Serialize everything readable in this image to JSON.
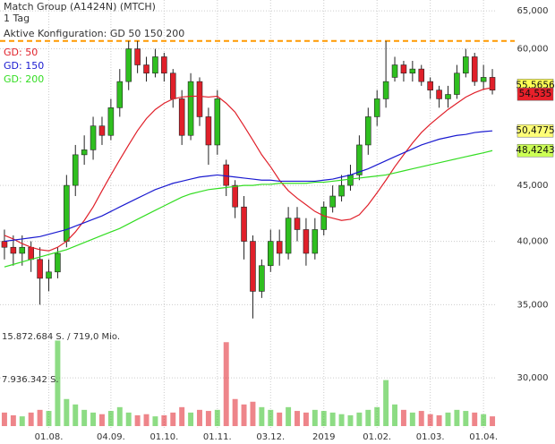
{
  "chart_data": {
    "type": "candlestick",
    "title": "Match Group (A1424N) (MTCH)",
    "subtitle": "1 Tag",
    "annotation": "Aktive Konfiguration: GD 50 150 200",
    "reference_line": {
      "value": 61,
      "color": "#ff9900"
    },
    "log_scale": true,
    "grid": true,
    "ylim": [
      27,
      66.5
    ],
    "yticks": [
      {
        "value": 65,
        "label": "65,000"
      },
      {
        "value": 60,
        "label": "60,000"
      },
      {
        "value": 45,
        "label": "45,000"
      },
      {
        "value": 40,
        "label": "40,000"
      },
      {
        "value": 35,
        "label": "35,000"
      },
      {
        "value": 30,
        "label": "30,000"
      }
    ],
    "categories": [
      null,
      null,
      null,
      null,
      null,
      "01.08.",
      null,
      null,
      null,
      null,
      null,
      null,
      "04.09.",
      null,
      null,
      null,
      null,
      null,
      "01.10.",
      null,
      null,
      null,
      null,
      null,
      "01.11.",
      null,
      null,
      null,
      null,
      null,
      "03.12.",
      null,
      null,
      null,
      null,
      null,
      "2019",
      null,
      null,
      null,
      null,
      null,
      "01.02.",
      null,
      null,
      null,
      null,
      null,
      "01.03.",
      null,
      null,
      null,
      null,
      null,
      "01.04.",
      null
    ],
    "up_color": "#2fbf1f",
    "down_color": "#e0202a",
    "open": [
      40,
      39.5,
      39,
      39.5,
      38.5,
      37,
      37.5,
      40,
      45,
      48,
      48.5,
      51,
      50,
      53,
      56,
      60,
      58,
      57,
      59,
      57,
      54,
      50,
      56,
      52,
      49,
      47,
      45,
      43,
      40,
      36,
      38,
      40,
      39,
      42,
      41,
      39,
      41,
      43,
      44,
      45,
      46,
      49,
      52,
      54,
      56.5,
      58,
      57,
      57.5,
      56,
      55,
      54,
      54.5,
      57,
      59,
      56,
      56.5
    ],
    "high": [
      41,
      40.5,
      40.5,
      40,
      39.5,
      38.5,
      39.5,
      46,
      49,
      50,
      52,
      52,
      54,
      57.5,
      61,
      61,
      59,
      60,
      59.5,
      57.5,
      55,
      57,
      56.5,
      53,
      55,
      47.5,
      45.5,
      44,
      40.5,
      38.5,
      41,
      41,
      43,
      43,
      42,
      42,
      43.5,
      45,
      46,
      47,
      50,
      53,
      55,
      61,
      59,
      58.5,
      58.5,
      58,
      56.5,
      55.5,
      55.5,
      58,
      60,
      59.5,
      58,
      57.5
    ],
    "low": [
      38.5,
      38,
      38,
      37.5,
      35,
      36,
      37,
      39.5,
      44,
      47,
      47.5,
      49,
      49.5,
      52,
      55,
      57,
      56,
      56.5,
      56,
      53,
      49,
      49.5,
      51,
      47,
      48,
      44,
      42,
      38.5,
      34,
      35.5,
      37.5,
      38,
      38.5,
      40,
      38,
      38.5,
      40.5,
      42.5,
      43.5,
      44.5,
      45.5,
      48,
      51,
      53,
      56,
      56,
      56,
      55.5,
      54,
      53,
      53,
      54,
      56.5,
      55.5,
      55,
      54.5
    ],
    "close": [
      39.5,
      39,
      39.5,
      38.5,
      37,
      37.5,
      39,
      45,
      48,
      48.5,
      51,
      50,
      53,
      56,
      60,
      58,
      57,
      59,
      57,
      54,
      50,
      56,
      52,
      49,
      54,
      45,
      43,
      40,
      36,
      38,
      40,
      39,
      42,
      41,
      39,
      41,
      43,
      44,
      45,
      46,
      49,
      52,
      54,
      56,
      58,
      57,
      57.5,
      56,
      55,
      54,
      54.5,
      57,
      59,
      56,
      56.5,
      55
    ],
    "series": [
      {
        "name": "GD: 50",
        "color": "#e0202a",
        "values": [
          40.5,
          40.2,
          39.8,
          39.5,
          39.3,
          39.2,
          39.5,
          40,
          40.8,
          41.8,
          43,
          44.5,
          46,
          47.5,
          49,
          50.5,
          51.8,
          52.8,
          53.5,
          54,
          54.2,
          54.3,
          54.3,
          54.2,
          54.3,
          53.5,
          52.5,
          51,
          49.5,
          48,
          46.8,
          45.5,
          44.5,
          43.8,
          43.2,
          42.6,
          42.2,
          42,
          41.8,
          41.9,
          42.3,
          43.2,
          44.3,
          45.5,
          46.8,
          48,
          49.2,
          50.3,
          51.2,
          52,
          52.8,
          53.5,
          54.2,
          54.7,
          55.1,
          55.3
        ]
      },
      {
        "name": "GD: 150",
        "color": "#1a1ad0",
        "values": [
          40,
          40.1,
          40.2,
          40.3,
          40.4,
          40.6,
          40.8,
          41,
          41.3,
          41.6,
          41.9,
          42.2,
          42.6,
          43,
          43.4,
          43.8,
          44.2,
          44.6,
          44.9,
          45.2,
          45.4,
          45.6,
          45.8,
          45.9,
          46,
          45.9,
          45.8,
          45.7,
          45.6,
          45.5,
          45.5,
          45.4,
          45.4,
          45.4,
          45.4,
          45.4,
          45.5,
          45.6,
          45.8,
          46,
          46.3,
          46.6,
          47,
          47.4,
          47.8,
          48.2,
          48.6,
          49,
          49.3,
          49.6,
          49.8,
          50,
          50.1,
          50.3,
          50.4,
          50.48
        ]
      },
      {
        "name": "GD: 200",
        "color": "#33dd22",
        "values": [
          37.9,
          38.1,
          38.3,
          38.5,
          38.7,
          38.9,
          39.1,
          39.3,
          39.6,
          39.9,
          40.2,
          40.5,
          40.8,
          41.1,
          41.5,
          41.9,
          42.3,
          42.7,
          43.1,
          43.5,
          43.9,
          44.2,
          44.4,
          44.6,
          44.7,
          44.8,
          44.9,
          45,
          45,
          45.1,
          45.1,
          45.2,
          45.2,
          45.2,
          45.2,
          45.3,
          45.3,
          45.4,
          45.5,
          45.6,
          45.7,
          45.8,
          45.9,
          46,
          46.2,
          46.4,
          46.6,
          46.8,
          47,
          47.2,
          47.4,
          47.6,
          47.8,
          48,
          48.2,
          48.42
        ]
      }
    ],
    "price_labels": [
      {
        "value": 55.5656,
        "label": "55,5656",
        "color": "#ffff55"
      },
      {
        "value": 54.535,
        "label": "54,535",
        "color": "#e8202a"
      },
      {
        "value": 50.4775,
        "label": "50,4775",
        "color": "#ffff77"
      },
      {
        "value": 48.4243,
        "label": "48,4243",
        "color": "#ccff55"
      }
    ],
    "volume": [
      2.5,
      2,
      1.8,
      2.5,
      3,
      2.8,
      15.8,
      5,
      4,
      3,
      2.5,
      2.2,
      2.8,
      3.5,
      2.5,
      2,
      2.2,
      1.8,
      2,
      2.5,
      3.5,
      2.5,
      3,
      2.8,
      3,
      15.5,
      5,
      4,
      4.5,
      3.5,
      3,
      2.5,
      3.5,
      2.8,
      2.5,
      3,
      2.8,
      2.5,
      2.2,
      2,
      2.5,
      3,
      3.5,
      8.5,
      4,
      3,
      2.5,
      2.8,
      2.2,
      2,
      2.5,
      3,
      2.8,
      2.5,
      2.2,
      1.8
    ],
    "vlim": [
      0,
      15.872684
    ],
    "vticks": [
      {
        "value": 15.872684,
        "label": "15.872.684 S. / 719,0 Mio."
      },
      {
        "value": 7.936342,
        "label": "7.936.342 S."
      }
    ]
  }
}
